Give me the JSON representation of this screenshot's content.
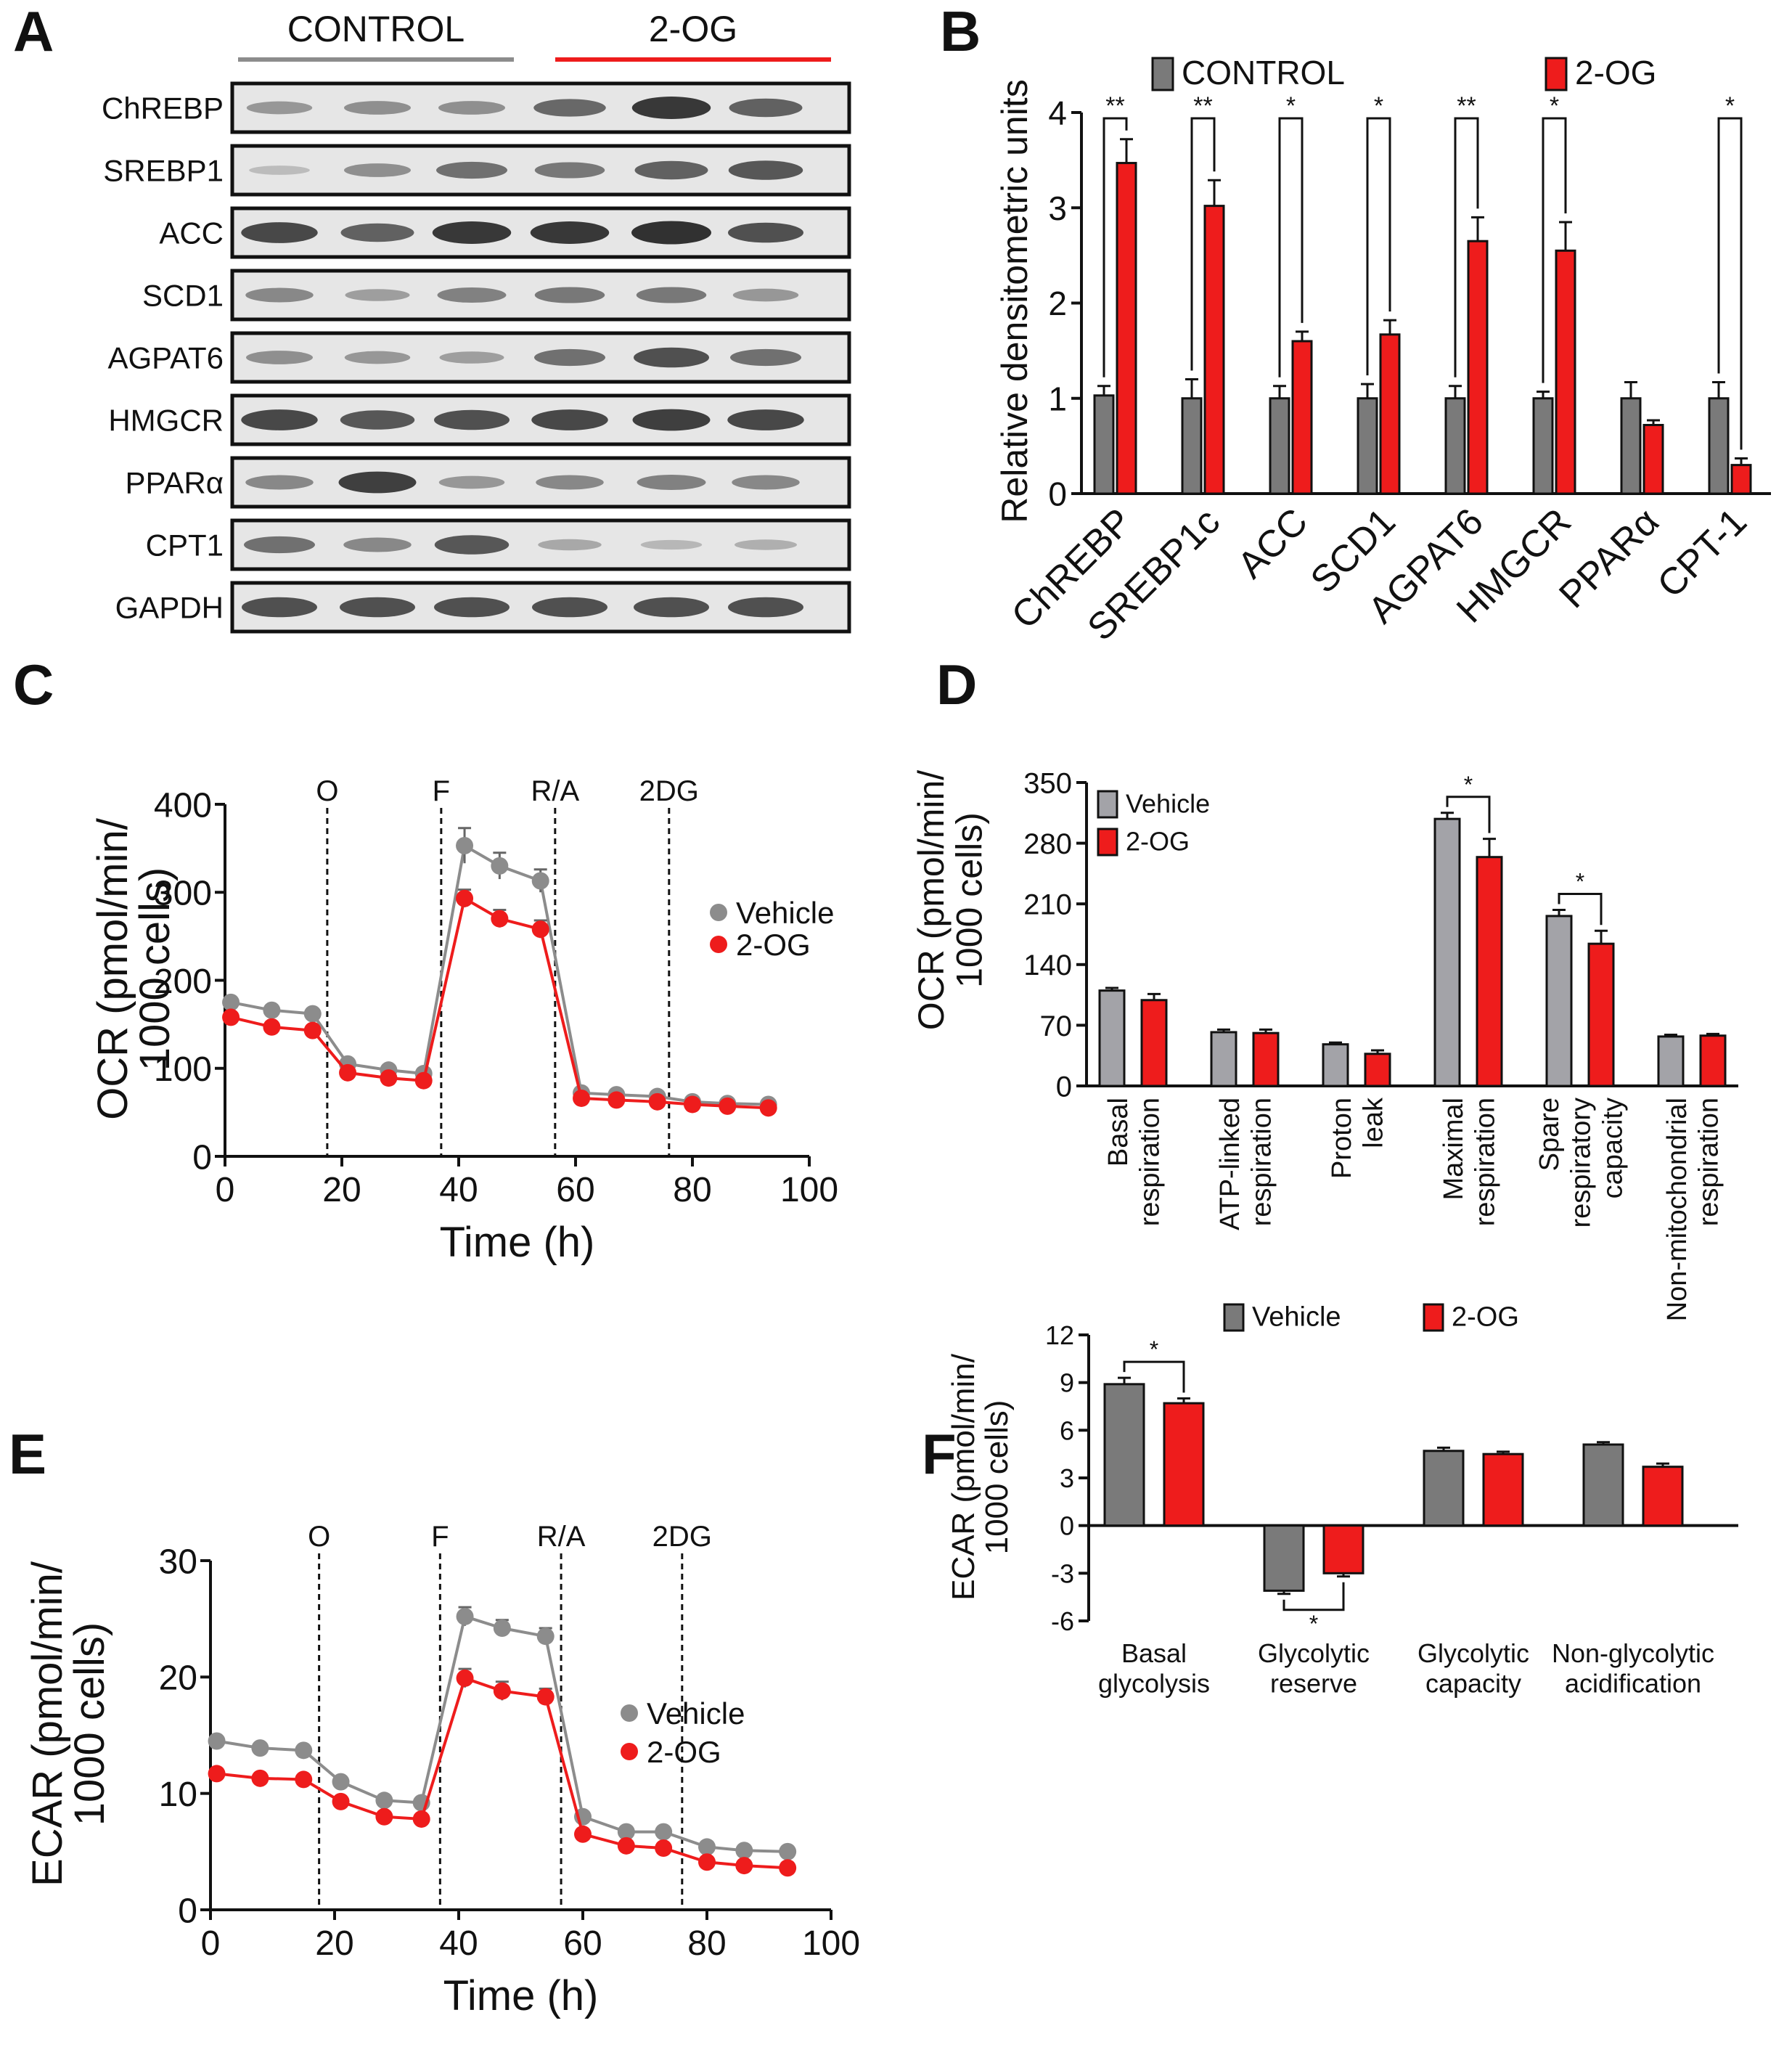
{
  "colors": {
    "control": "#7a7a7a",
    "treated": "#ee1c1c",
    "vehicle_line": "#8c8c8c",
    "vehicle_bar": "#a3a3a8",
    "blot_bg": "#e6e6e6",
    "band": "#2a2a2a"
  },
  "panel_letters": [
    "A",
    "B",
    "C",
    "D",
    "E",
    "F"
  ],
  "chart_data": [
    {
      "panel": "A",
      "type": "table",
      "groups": [
        "CONTROL",
        "2-OG"
      ],
      "rows": [
        "ChREBP",
        "SREBP1",
        "ACC",
        "SCD1",
        "AGPAT6",
        "HMGCR",
        "PPARα",
        "CPT1",
        "GAPDH"
      ],
      "band_intensity": [
        [
          0.35,
          0.4,
          0.4,
          0.65,
          0.95,
          0.7
        ],
        [
          0.12,
          0.4,
          0.6,
          0.55,
          0.7,
          0.75
        ],
        [
          0.85,
          0.7,
          0.95,
          0.95,
          1.0,
          0.8
        ],
        [
          0.45,
          0.3,
          0.5,
          0.55,
          0.55,
          0.35
        ],
        [
          0.4,
          0.35,
          0.3,
          0.6,
          0.8,
          0.6
        ],
        [
          0.85,
          0.75,
          0.8,
          0.85,
          0.9,
          0.85
        ],
        [
          0.45,
          0.9,
          0.35,
          0.45,
          0.5,
          0.45
        ],
        [
          0.6,
          0.45,
          0.75,
          0.25,
          0.15,
          0.2
        ],
        [
          0.8,
          0.8,
          0.8,
          0.8,
          0.8,
          0.8
        ]
      ]
    },
    {
      "panel": "B",
      "type": "bar",
      "ylabel": "Relative densitometric units",
      "ylim": [
        0,
        4
      ],
      "yticks": [
        0,
        1,
        2,
        3,
        4
      ],
      "categories": [
        "ChREBP",
        "SREBP1c",
        "ACC",
        "SCD1",
        "AGPAT6",
        "HMGCR",
        "PPARα",
        "CPT-1"
      ],
      "series": [
        {
          "name": "CONTROL",
          "values": [
            1.03,
            1.0,
            1.0,
            1.0,
            1.0,
            1.0,
            1.0,
            1.0
          ],
          "errors": [
            0.1,
            0.2,
            0.13,
            0.15,
            0.13,
            0.07,
            0.17,
            0.17
          ]
        },
        {
          "name": "2-OG",
          "values": [
            3.47,
            3.02,
            1.6,
            1.67,
            2.65,
            2.55,
            0.72,
            0.3
          ],
          "errors": [
            0.25,
            0.27,
            0.1,
            0.15,
            0.25,
            0.3,
            0.05,
            0.07
          ]
        }
      ],
      "significance": [
        "**",
        "**",
        "*",
        "*",
        "**",
        "*",
        "",
        "*"
      ],
      "legend": "top"
    },
    {
      "panel": "C",
      "type": "line",
      "xlabel": "Time (h)",
      "ylabel": "OCR (pmol/min/ 1000 cells)",
      "xlim": [
        0,
        100
      ],
      "ylim": [
        0,
        400
      ],
      "xticks": [
        0,
        20,
        40,
        60,
        80,
        100
      ],
      "yticks": [
        0,
        100,
        200,
        300,
        400
      ],
      "x": [
        1,
        8,
        15,
        21,
        28,
        34,
        41,
        47,
        54,
        61,
        67,
        74,
        80,
        86,
        93
      ],
      "series": [
        {
          "name": "Vehicle",
          "values": [
            175,
            166,
            162,
            105,
            98,
            94,
            353,
            330,
            313,
            72,
            70,
            68,
            62,
            60,
            59
          ],
          "errors": [
            4,
            4,
            4,
            4,
            4,
            4,
            20,
            15,
            13,
            3,
            3,
            3,
            3,
            3,
            3
          ]
        },
        {
          "name": "2-OG",
          "values": [
            158,
            147,
            143,
            95,
            89,
            86,
            293,
            270,
            258,
            66,
            64,
            62,
            59,
            57,
            55
          ],
          "errors": [
            4,
            4,
            4,
            4,
            4,
            4,
            10,
            10,
            10,
            3,
            3,
            3,
            3,
            3,
            3
          ]
        }
      ],
      "injections": [
        {
          "label": "O",
          "x": 17.5
        },
        {
          "label": "F",
          "x": 37
        },
        {
          "label": "R/A",
          "x": 56.5
        },
        {
          "label": "2DG",
          "x": 76
        }
      ],
      "legend": "right"
    },
    {
      "panel": "D",
      "type": "bar",
      "ylabel": "OCR (pmol/min/ 1000 cells)",
      "ylim": [
        0,
        350
      ],
      "yticks": [
        0,
        70,
        140,
        210,
        280,
        350
      ],
      "categories": [
        "Basal respiration",
        "ATP-linked respiration",
        "Proton leak",
        "Maximal respiration",
        "Spare respiratory capacity",
        "Non-mitochondrial respiration"
      ],
      "category_lines": [
        [
          "Basal",
          "respiration"
        ],
        [
          "ATP-linked",
          "respiration"
        ],
        [
          "Proton",
          "leak"
        ],
        [
          "Maximal",
          "respiration"
        ],
        [
          "Spare",
          "respiratory",
          "capacity"
        ],
        [
          "Non-mitochondrial",
          "respiration"
        ]
      ],
      "series": [
        {
          "name": "Vehicle",
          "values": [
            110,
            62,
            48,
            308,
            196,
            57
          ],
          "errors": [
            3,
            3,
            2,
            7,
            7,
            2
          ]
        },
        {
          "name": "2-OG",
          "values": [
            99,
            61,
            37,
            264,
            164,
            58
          ],
          "errors": [
            7,
            4,
            4,
            21,
            15,
            2
          ]
        }
      ],
      "significance": [
        "",
        "",
        "",
        "*",
        "*",
        ""
      ],
      "legend": "top-left"
    },
    {
      "panel": "E",
      "type": "line",
      "xlabel": "Time (h)",
      "ylabel": "ECAR (pmol/min/ 1000 cells)",
      "xlim": [
        0,
        100
      ],
      "ylim": [
        0,
        30
      ],
      "xticks": [
        0,
        20,
        40,
        60,
        80,
        100
      ],
      "yticks": [
        0,
        10,
        20,
        30
      ],
      "x": [
        1,
        8,
        15,
        21,
        28,
        34,
        41,
        47,
        54,
        60,
        67,
        73,
        80,
        86,
        93
      ],
      "series": [
        {
          "name": "Vehicle",
          "values": [
            14.5,
            13.9,
            13.7,
            11.0,
            9.4,
            9.2,
            25.2,
            24.2,
            23.5,
            8.0,
            6.7,
            6.7,
            5.4,
            5.1,
            5.0
          ],
          "errors": [
            0.3,
            0.3,
            0.3,
            0.3,
            0.3,
            0.3,
            0.8,
            0.7,
            0.7,
            0.3,
            0.3,
            0.3,
            0.3,
            0.3,
            0.3
          ]
        },
        {
          "name": "2-OG",
          "values": [
            11.7,
            11.3,
            11.2,
            9.3,
            8.0,
            7.8,
            19.9,
            18.8,
            18.3,
            6.5,
            5.5,
            5.3,
            4.1,
            3.8,
            3.6
          ],
          "errors": [
            0.3,
            0.3,
            0.3,
            0.3,
            0.3,
            0.3,
            0.8,
            0.8,
            0.7,
            0.3,
            0.3,
            0.3,
            0.3,
            0.3,
            0.3
          ]
        }
      ],
      "injections": [
        {
          "label": "O",
          "x": 17.5
        },
        {
          "label": "F",
          "x": 37
        },
        {
          "label": "R/A",
          "x": 56.5
        },
        {
          "label": "2DG",
          "x": 76
        }
      ],
      "legend": "right"
    },
    {
      "panel": "F",
      "type": "bar",
      "ylabel": "ECAR (pmol/min/ 1000 cells)",
      "ylim": [
        -6,
        12
      ],
      "yticks": [
        -6,
        -3,
        0,
        3,
        6,
        9,
        12
      ],
      "categories": [
        "Basal glycolysis",
        "Glycolytic reserve",
        "Glycolytic capacity",
        "Non-glycolytic acidification"
      ],
      "category_lines": [
        [
          "Basal",
          "glycolysis"
        ],
        [
          "Glycolytic",
          "reserve"
        ],
        [
          "Glycolytic",
          "capacity"
        ],
        [
          "Non-glycolytic",
          "acidification"
        ]
      ],
      "series": [
        {
          "name": "Vehicle",
          "values": [
            8.9,
            -4.1,
            4.7,
            5.1
          ],
          "errors": [
            0.4,
            0.2,
            0.2,
            0.15
          ]
        },
        {
          "name": "2-OG",
          "values": [
            7.7,
            -3.0,
            4.5,
            3.7
          ],
          "errors": [
            0.3,
            0.2,
            0.15,
            0.2
          ]
        }
      ],
      "significance": [
        "*",
        "*",
        "",
        ""
      ],
      "legend": "top"
    }
  ]
}
